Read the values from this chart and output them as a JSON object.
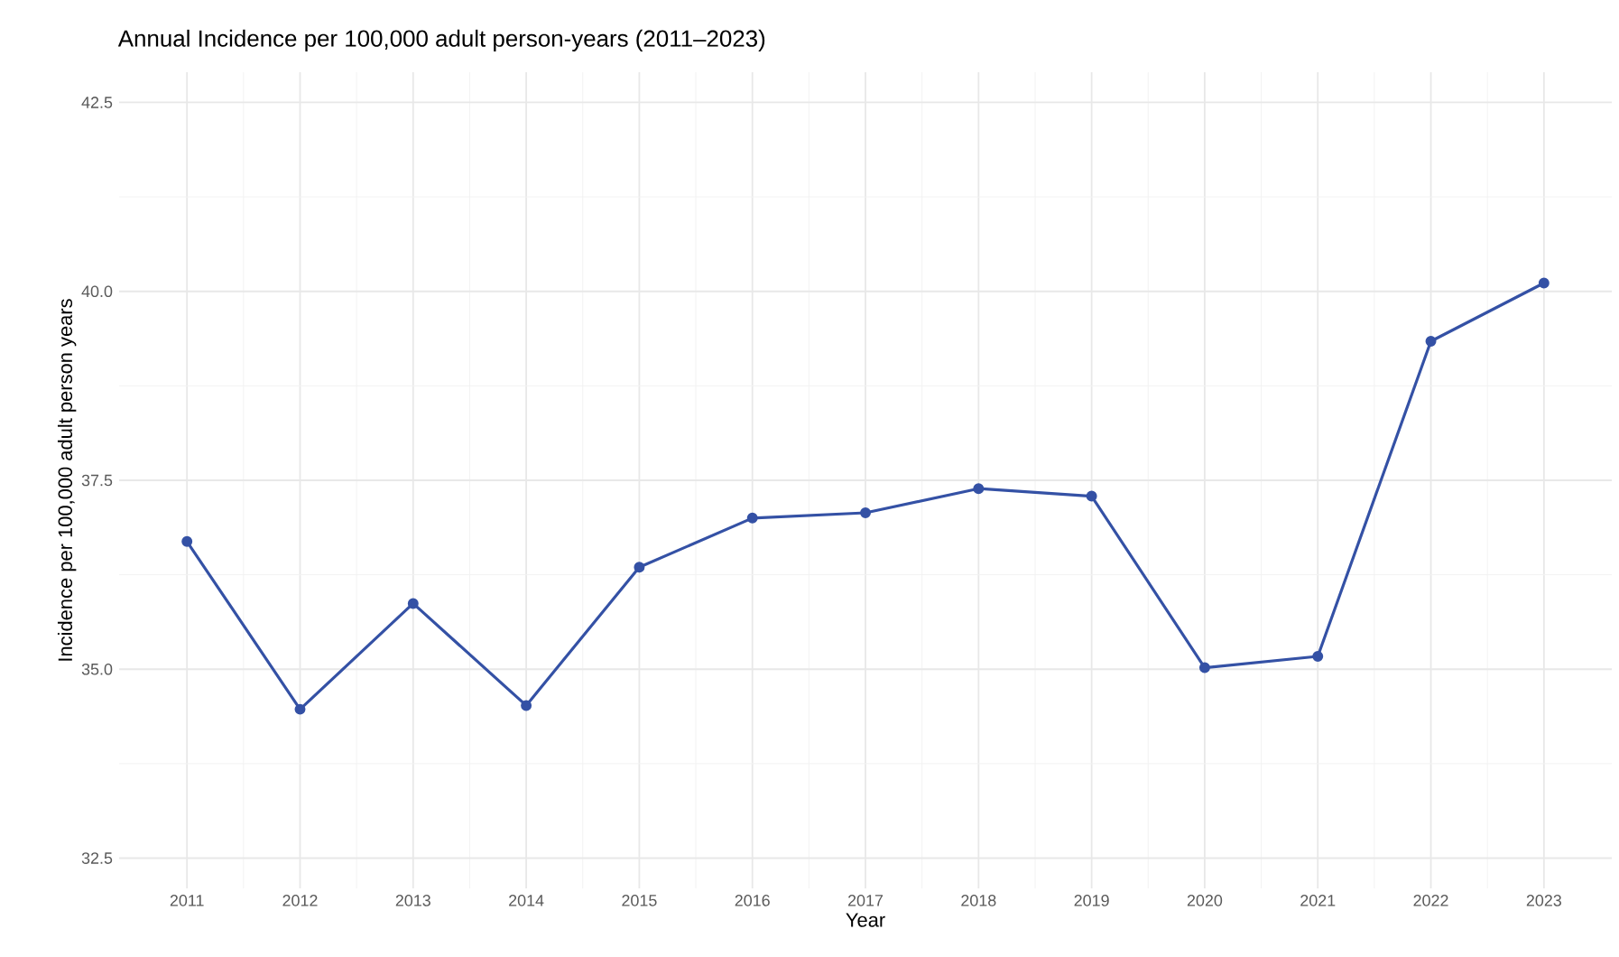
{
  "chart_data": {
    "type": "line",
    "title": "Annual Incidence per 100,000 adult person-years (2011–2023)",
    "xlabel": "Year",
    "ylabel": "Incidence per 100,000 adult person years",
    "x": [
      2011,
      2012,
      2013,
      2014,
      2015,
      2016,
      2017,
      2018,
      2019,
      2020,
      2021,
      2022,
      2023
    ],
    "values": [
      36.69,
      34.47,
      35.87,
      34.52,
      36.35,
      37.0,
      37.07,
      37.39,
      37.29,
      35.02,
      35.17,
      39.34,
      40.11
    ],
    "color": "#3451a5",
    "marker": "circle",
    "line_style": "solid",
    "grid": true,
    "xlim": [
      2010.4,
      2023.6
    ],
    "ylim": [
      32.1,
      42.9
    ],
    "xticks": [
      2011,
      2012,
      2013,
      2014,
      2015,
      2016,
      2017,
      2018,
      2019,
      2020,
      2021,
      2022,
      2023
    ],
    "yticks": [
      {
        "value": 32.5,
        "label": "32.5"
      },
      {
        "value": 35,
        "label": "35.0"
      },
      {
        "value": 37.5,
        "label": "37.5"
      },
      {
        "value": 40,
        "label": "40.0"
      },
      {
        "value": 42.5,
        "label": "42.5"
      }
    ]
  }
}
